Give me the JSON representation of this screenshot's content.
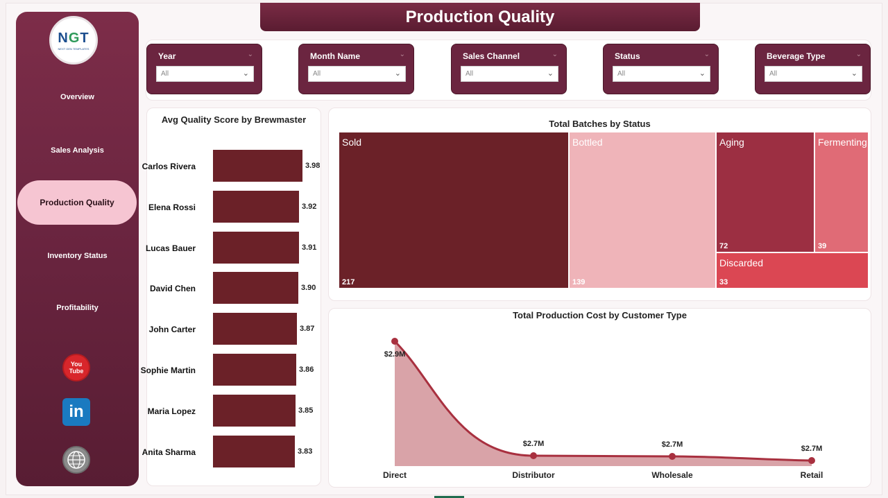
{
  "title": "Production Quality",
  "logo": {
    "mark_n": "N",
    "mark_g": "G",
    "mark_t": "T",
    "tagline": "NEXT GEN TEMPLATES"
  },
  "nav": [
    {
      "label": "Overview"
    },
    {
      "label": "Sales Analysis"
    },
    {
      "label": "Production Quality",
      "active": true
    },
    {
      "label": "Inventory Status"
    },
    {
      "label": "Profitability"
    }
  ],
  "social": {
    "youtube_top": "You",
    "youtube_bottom": "Tube",
    "linkedin": "in"
  },
  "filters": [
    {
      "label": "Year",
      "value": "All"
    },
    {
      "label": "Month Name",
      "value": "All"
    },
    {
      "label": "Sales Channel",
      "value": "All"
    },
    {
      "label": "Status",
      "value": "All"
    },
    {
      "label": "Beverage Type",
      "value": "All"
    }
  ],
  "colors": {
    "bar": "#6b2128",
    "sold": "#6b2128",
    "bottled": "#efb4b9",
    "aging": "#9c2f42",
    "fermenting": "#e06b76",
    "discarded": "#db4753",
    "area": "#d9a3a8",
    "line": "#a8303f"
  },
  "chart_data": [
    {
      "type": "bar",
      "title": "Avg Quality Score by Brewmaster",
      "orientation": "horizontal",
      "categories": [
        "Carlos Rivera",
        "Elena Rossi",
        "Lucas Bauer",
        "David Chen",
        "John Carter",
        "Sophie Martin",
        "Maria Lopez",
        "Anita Sharma"
      ],
      "values": [
        3.98,
        3.92,
        3.91,
        3.9,
        3.87,
        3.86,
        3.85,
        3.83
      ],
      "labels": [
        "3.98",
        "3.92",
        "3.91",
        "3.90",
        "3.87",
        "3.86",
        "3.85",
        "3.83"
      ]
    },
    {
      "type": "treemap",
      "title": "Total Batches by Status",
      "categories": [
        "Sold",
        "Bottled",
        "Aging",
        "Fermenting",
        "Discarded"
      ],
      "values": [
        217,
        139,
        72,
        39,
        33
      ]
    },
    {
      "type": "area",
      "title": "Total Production Cost by Customer Type",
      "categories": [
        "Direct",
        "Distributor",
        "Wholesale",
        "Retail"
      ],
      "values": [
        2.9,
        2.7,
        2.7,
        2.7
      ],
      "labels": [
        "$2.9M",
        "$2.7M",
        "$2.7M",
        "$2.7M"
      ],
      "unit": "$M"
    }
  ]
}
